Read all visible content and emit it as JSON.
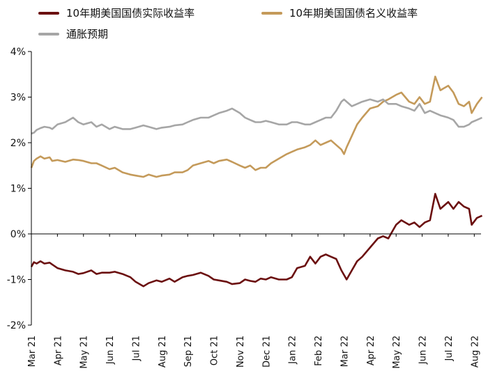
{
  "chart_data": {
    "type": "line",
    "title": "",
    "xlabel": "",
    "ylabel": "",
    "ylim": [
      -2,
      4
    ],
    "y_ticks": [
      "4%",
      "3%",
      "2%",
      "1%",
      "0%",
      "-1%",
      "-2%"
    ],
    "x_ticks": [
      "Mar 21",
      "Apr 21",
      "May 21",
      "Jun 21",
      "Jul 21",
      "Aug 21",
      "Sep 21",
      "Oct 21",
      "Nov 21",
      "Dec 21",
      "Jan 22",
      "Feb 22",
      "Mar 22",
      "Apr 22",
      "May 22",
      "Jun 22",
      "Jul 22",
      "Aug 22"
    ],
    "legend_position": "top-left",
    "grid": false,
    "x": [
      0,
      0.1,
      0.2,
      0.35,
      0.5,
      0.7,
      0.8,
      1.0,
      1.3,
      1.6,
      1.8,
      2.0,
      2.3,
      2.5,
      2.7,
      3.0,
      3.2,
      3.5,
      3.8,
      4.0,
      4.3,
      4.5,
      4.8,
      5.0,
      5.3,
      5.5,
      5.8,
      6.0,
      6.2,
      6.5,
      6.8,
      7.0,
      7.2,
      7.5,
      7.7,
      8.0,
      8.2,
      8.4,
      8.6,
      8.8,
      9.0,
      9.2,
      9.5,
      9.8,
      10.0,
      10.2,
      10.5,
      10.7,
      10.9,
      11.1,
      11.3,
      11.5,
      11.7,
      11.9,
      12.0,
      12.1,
      12.3,
      12.5,
      12.7,
      13.0,
      13.3,
      13.5,
      13.7,
      14.0,
      14.2,
      14.5,
      14.7,
      14.9,
      15.1,
      15.3,
      15.5,
      15.7,
      16.0,
      16.2,
      16.4,
      16.6,
      16.8,
      16.9,
      17.1,
      17.3
    ],
    "series": [
      {
        "name": "10年期美国国债实际收益率",
        "color": "#6b0f0f",
        "values": [
          -0.72,
          -0.62,
          -0.65,
          -0.6,
          -0.65,
          -0.63,
          -0.67,
          -0.75,
          -0.8,
          -0.83,
          -0.88,
          -0.86,
          -0.8,
          -0.88,
          -0.85,
          -0.85,
          -0.83,
          -0.88,
          -0.95,
          -1.05,
          -1.15,
          -1.08,
          -1.02,
          -1.05,
          -0.98,
          -1.05,
          -0.95,
          -0.92,
          -0.9,
          -0.85,
          -0.92,
          -1.0,
          -1.02,
          -1.05,
          -1.1,
          -1.08,
          -1.0,
          -1.03,
          -1.05,
          -0.98,
          -1.0,
          -0.95,
          -1.0,
          -1.0,
          -0.95,
          -0.75,
          -0.7,
          -0.5,
          -0.65,
          -0.5,
          -0.45,
          -0.5,
          -0.55,
          -0.8,
          -0.9,
          -1.0,
          -0.8,
          -0.6,
          -0.5,
          -0.3,
          -0.1,
          -0.05,
          -0.1,
          0.2,
          0.3,
          0.2,
          0.25,
          0.15,
          0.25,
          0.3,
          0.88,
          0.55,
          0.7,
          0.55,
          0.7,
          0.6,
          0.55,
          0.2,
          0.35,
          0.4
        ]
      },
      {
        "name": "10年期美国国债名义收益率",
        "color": "#c49a5a",
        "values": [
          1.45,
          1.6,
          1.65,
          1.7,
          1.65,
          1.68,
          1.6,
          1.62,
          1.58,
          1.63,
          1.62,
          1.6,
          1.55,
          1.55,
          1.5,
          1.42,
          1.45,
          1.35,
          1.3,
          1.28,
          1.25,
          1.3,
          1.25,
          1.28,
          1.3,
          1.35,
          1.35,
          1.4,
          1.5,
          1.55,
          1.6,
          1.55,
          1.6,
          1.63,
          1.58,
          1.5,
          1.45,
          1.5,
          1.4,
          1.45,
          1.45,
          1.55,
          1.65,
          1.75,
          1.8,
          1.85,
          1.9,
          1.95,
          2.05,
          1.95,
          2.0,
          2.05,
          1.95,
          1.85,
          1.75,
          1.9,
          2.15,
          2.4,
          2.55,
          2.75,
          2.8,
          2.9,
          2.95,
          3.05,
          3.1,
          2.9,
          2.85,
          3.0,
          2.85,
          2.9,
          3.45,
          3.15,
          3.25,
          3.1,
          2.85,
          2.8,
          2.9,
          2.65,
          2.85,
          3.0
        ]
      },
      {
        "name": "通胀预期",
        "color": "#a6a6a6",
        "values": [
          2.2,
          2.22,
          2.28,
          2.32,
          2.35,
          2.33,
          2.3,
          2.4,
          2.45,
          2.55,
          2.45,
          2.4,
          2.45,
          2.35,
          2.4,
          2.3,
          2.35,
          2.3,
          2.3,
          2.33,
          2.38,
          2.35,
          2.3,
          2.33,
          2.35,
          2.38,
          2.4,
          2.45,
          2.5,
          2.55,
          2.55,
          2.6,
          2.65,
          2.7,
          2.75,
          2.65,
          2.55,
          2.5,
          2.45,
          2.45,
          2.48,
          2.45,
          2.4,
          2.4,
          2.45,
          2.45,
          2.4,
          2.4,
          2.45,
          2.5,
          2.55,
          2.55,
          2.7,
          2.9,
          2.95,
          2.9,
          2.8,
          2.85,
          2.9,
          2.95,
          2.9,
          2.95,
          2.85,
          2.85,
          2.8,
          2.75,
          2.7,
          2.85,
          2.65,
          2.7,
          2.65,
          2.6,
          2.55,
          2.5,
          2.35,
          2.35,
          2.4,
          2.45,
          2.5,
          2.55
        ]
      }
    ]
  }
}
